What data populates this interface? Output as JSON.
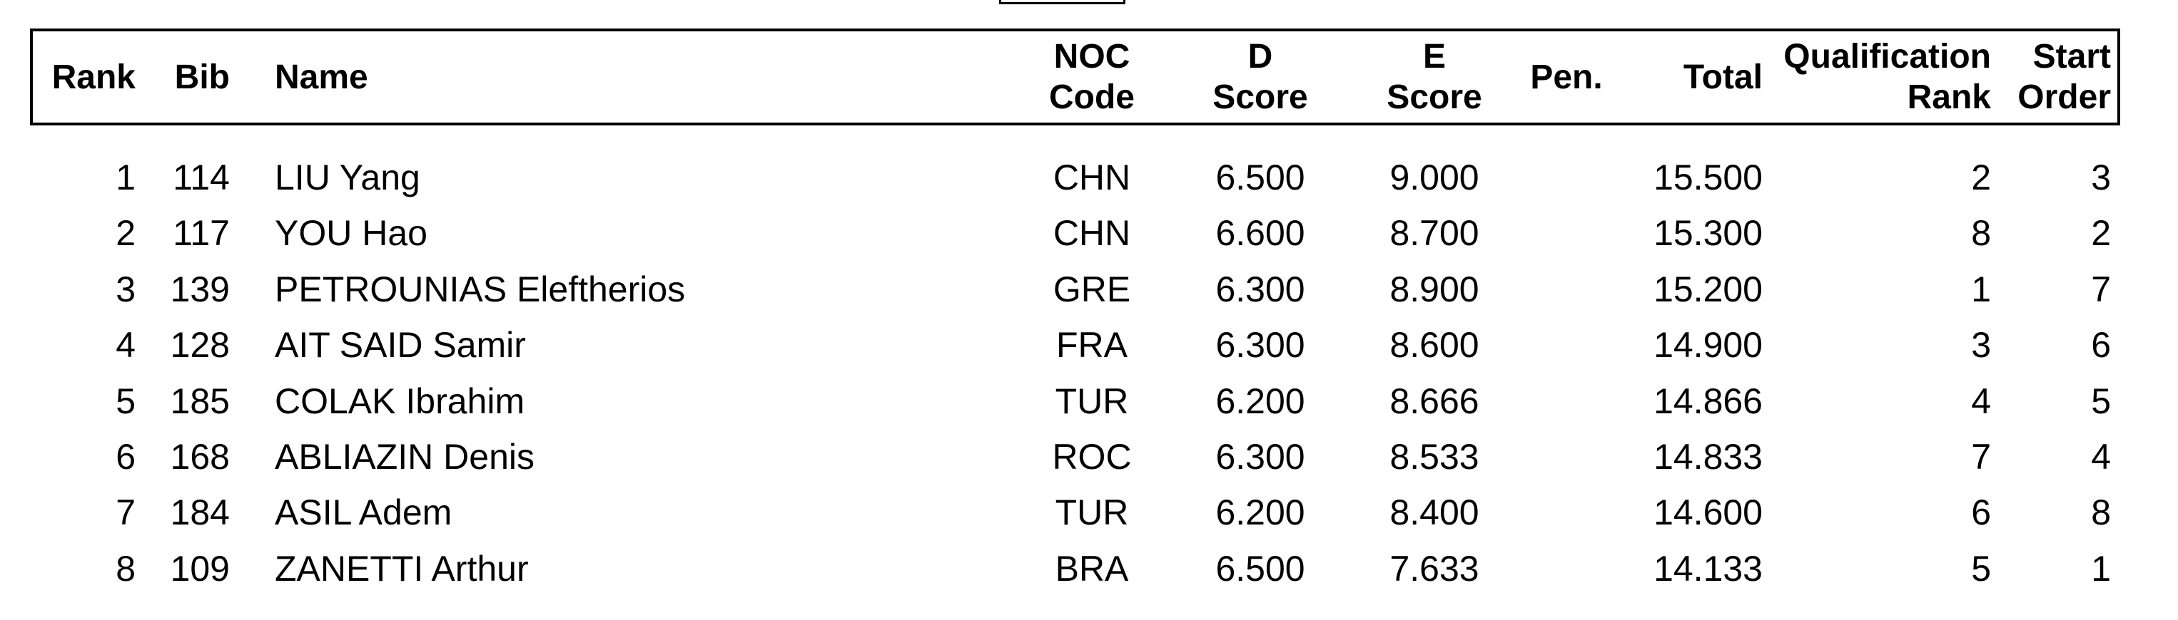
{
  "document": {
    "colors": {
      "background": "#ffffff",
      "text": "#000000",
      "border": "#000000"
    },
    "header_columns": [
      {
        "id": "rank",
        "label": "Rank"
      },
      {
        "id": "bib",
        "label": "Bib"
      },
      {
        "id": "name",
        "label": "Name"
      },
      {
        "id": "noc",
        "label_line1": "NOC",
        "label_line2": "Code"
      },
      {
        "id": "d_score",
        "label_line1": "D",
        "label_line2": "Score"
      },
      {
        "id": "e_score",
        "label_line1": "E",
        "label_line2": "Score"
      },
      {
        "id": "pen",
        "label": "Pen."
      },
      {
        "id": "total",
        "label": "Total"
      },
      {
        "id": "qualification_rank",
        "label_line1": "Qualification",
        "label_line2": "Rank"
      },
      {
        "id": "start_order",
        "label_line1": "Start",
        "label_line2": "Order"
      }
    ],
    "rows": [
      {
        "rank": "1",
        "bib": "114",
        "name": "LIU Yang",
        "noc": "CHN",
        "d_score": "6.500",
        "e_score": "9.000",
        "pen": "",
        "total": "15.500",
        "qualification_rank": "2",
        "start_order": "3"
      },
      {
        "rank": "2",
        "bib": "117",
        "name": "YOU Hao",
        "noc": "CHN",
        "d_score": "6.600",
        "e_score": "8.700",
        "pen": "",
        "total": "15.300",
        "qualification_rank": "8",
        "start_order": "2"
      },
      {
        "rank": "3",
        "bib": "139",
        "name": "PETROUNIAS Eleftherios",
        "noc": "GRE",
        "d_score": "6.300",
        "e_score": "8.900",
        "pen": "",
        "total": "15.200",
        "qualification_rank": "1",
        "start_order": "7"
      },
      {
        "rank": "4",
        "bib": "128",
        "name": "AIT SAID Samir",
        "noc": "FRA",
        "d_score": "6.300",
        "e_score": "8.600",
        "pen": "",
        "total": "14.900",
        "qualification_rank": "3",
        "start_order": "6"
      },
      {
        "rank": "5",
        "bib": "185",
        "name": "COLAK Ibrahim",
        "noc": "TUR",
        "d_score": "6.200",
        "e_score": "8.666",
        "pen": "",
        "total": "14.866",
        "qualification_rank": "4",
        "start_order": "5"
      },
      {
        "rank": "6",
        "bib": "168",
        "name": "ABLIAZIN Denis",
        "noc": "ROC",
        "d_score": "6.300",
        "e_score": "8.533",
        "pen": "",
        "total": "14.833",
        "qualification_rank": "7",
        "start_order": "4"
      },
      {
        "rank": "7",
        "bib": "184",
        "name": "ASIL Adem",
        "noc": "TUR",
        "d_score": "6.200",
        "e_score": "8.400",
        "pen": "",
        "total": "14.600",
        "qualification_rank": "6",
        "start_order": "8"
      },
      {
        "rank": "8",
        "bib": "109",
        "name": "ZANETTI Arthur",
        "noc": "BRA",
        "d_score": "6.500",
        "e_score": "7.633",
        "pen": "",
        "total": "14.133",
        "qualification_rank": "5",
        "start_order": "1"
      }
    ]
  }
}
